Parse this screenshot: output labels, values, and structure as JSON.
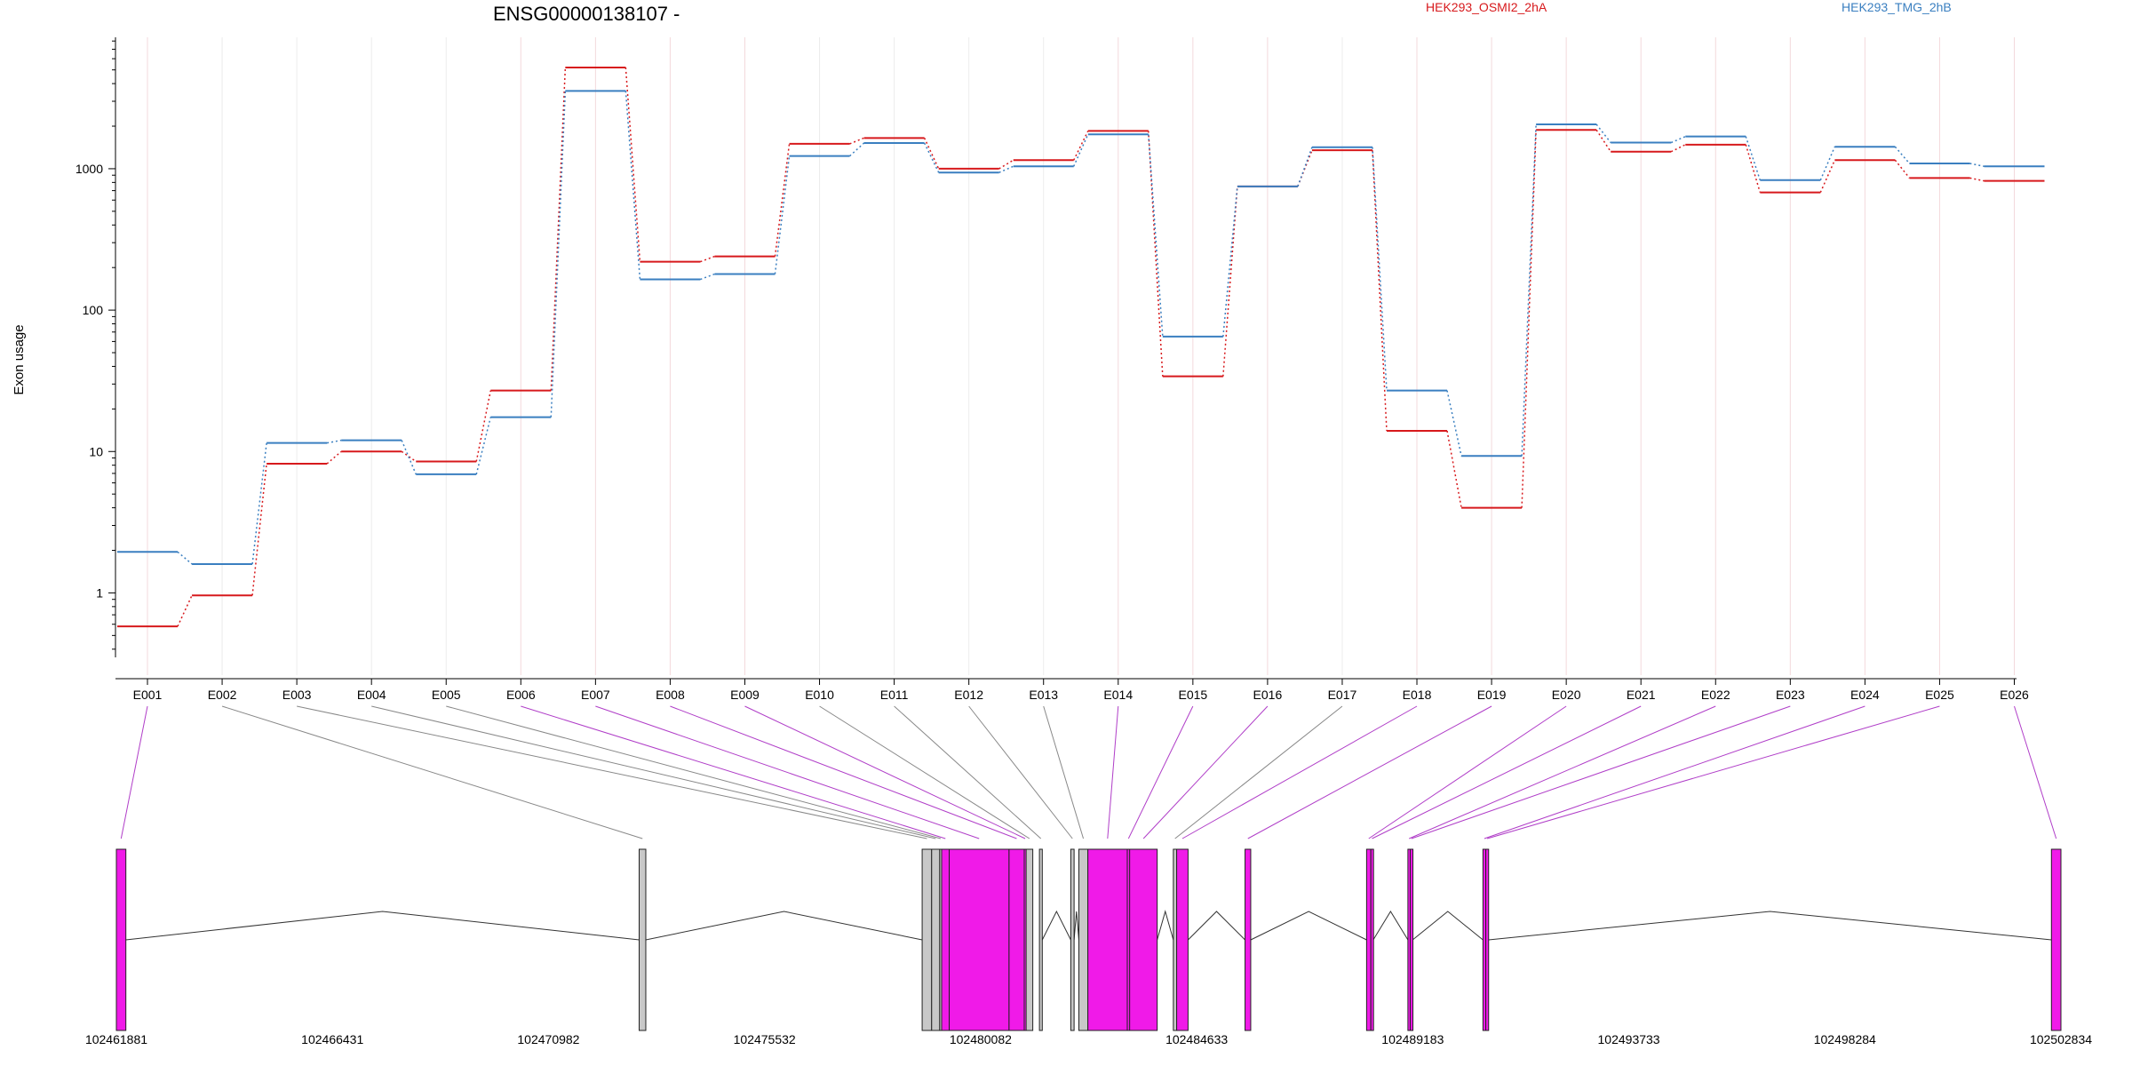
{
  "chart_data": {
    "type": "line",
    "title": "ENSG00000138107 -",
    "ylabel": "Exon usage",
    "yscale": "log",
    "ylim": [
      0.35,
      8500
    ],
    "yticks": [
      1,
      10,
      100,
      1000
    ],
    "ytick_labels": [
      "1",
      "10",
      "100",
      "1000"
    ],
    "categories": [
      "E001",
      "E002",
      "E003",
      "E004",
      "E005",
      "E006",
      "E007",
      "E008",
      "E009",
      "E010",
      "E011",
      "E012",
      "E013",
      "E014",
      "E015",
      "E016",
      "E017",
      "E018",
      "E019",
      "E020",
      "E021",
      "E022",
      "E023",
      "E024",
      "E025",
      "E026"
    ],
    "series": [
      {
        "name": "HEK293_OSMI2_2hA",
        "color": "#d7191c",
        "values": [
          0.58,
          0.96,
          8.2,
          10,
          8.5,
          27,
          5200,
          220,
          240,
          1500,
          1650,
          1000,
          1150,
          1850,
          34,
          750,
          1350,
          14,
          4,
          1880,
          1320,
          1480,
          680,
          1150,
          860,
          820
        ]
      },
      {
        "name": "HEK293_TMG_2hB",
        "color": "#3a7fc0",
        "values": [
          1.95,
          1.6,
          11.5,
          12,
          6.9,
          17.5,
          3550,
          165,
          180,
          1230,
          1520,
          940,
          1040,
          1750,
          65,
          750,
          1420,
          27,
          9.3,
          2060,
          1530,
          1690,
          830,
          1430,
          1090,
          1040
        ]
      }
    ],
    "grid": true,
    "legend_position": "top",
    "gene_model": {
      "start_coord": 102461881,
      "end_coord": 102502834,
      "coordinate_labels": [
        "102461881",
        "102466431",
        "102470982",
        "102475532",
        "102480082",
        "102484633",
        "102489183",
        "102493733",
        "102498284",
        "102502834"
      ],
      "exons": [
        {
          "id": "E001",
          "start": 102461881,
          "end": 102462081,
          "significant": true
        },
        {
          "id": "E002",
          "start": 102472891,
          "end": 102473031,
          "significant": false
        },
        {
          "id": "E003",
          "start": 102478851,
          "end": 102479051,
          "significant": false
        },
        {
          "id": "E004",
          "start": 102479051,
          "end": 102479221,
          "significant": false
        },
        {
          "id": "E005",
          "start": 102479221,
          "end": 102479261,
          "significant": false
        },
        {
          "id": "E006",
          "start": 102479261,
          "end": 102479421,
          "significant": true
        },
        {
          "id": "E007",
          "start": 102479421,
          "end": 102480681,
          "significant": true
        },
        {
          "id": "E008",
          "start": 102480681,
          "end": 102481001,
          "significant": true
        },
        {
          "id": "E009",
          "start": 102481001,
          "end": 102481041,
          "significant": true
        },
        {
          "id": "E010",
          "start": 102481041,
          "end": 102481181,
          "significant": false
        },
        {
          "id": "E011",
          "start": 102481321,
          "end": 102481381,
          "significant": false
        },
        {
          "id": "E012",
          "start": 102481981,
          "end": 102482051,
          "significant": false
        },
        {
          "id": "E013",
          "start": 102482151,
          "end": 102482341,
          "significant": false
        },
        {
          "id": "E014",
          "start": 102482341,
          "end": 102483171,
          "significant": true
        },
        {
          "id": "E015",
          "start": 102483171,
          "end": 102483221,
          "significant": true
        },
        {
          "id": "E016",
          "start": 102483221,
          "end": 102483801,
          "significant": true
        },
        {
          "id": "E017",
          "start": 102484141,
          "end": 102484211,
          "significant": false
        },
        {
          "id": "E018",
          "start": 102484211,
          "end": 102484451,
          "significant": true
        },
        {
          "id": "E019",
          "start": 102485651,
          "end": 102485771,
          "significant": true
        },
        {
          "id": "E020",
          "start": 102488211,
          "end": 102488301,
          "significant": true
        },
        {
          "id": "E021",
          "start": 102488301,
          "end": 102488351,
          "significant": true
        },
        {
          "id": "E022",
          "start": 102489081,
          "end": 102489131,
          "significant": true
        },
        {
          "id": "E023",
          "start": 102489131,
          "end": 102489181,
          "significant": true
        },
        {
          "id": "E024",
          "start": 102490661,
          "end": 102490721,
          "significant": true
        },
        {
          "id": "E025",
          "start": 102490721,
          "end": 102490781,
          "significant": true
        },
        {
          "id": "E026",
          "start": 102502634,
          "end": 102502834,
          "significant": true
        }
      ],
      "introns": [
        [
          0,
          1
        ],
        [
          1,
          2
        ],
        [
          10,
          11
        ],
        [
          11,
          12
        ],
        [
          15,
          16
        ],
        [
          17,
          18
        ],
        [
          18,
          19
        ],
        [
          20,
          21
        ],
        [
          22,
          23
        ],
        [
          24,
          25
        ]
      ]
    }
  }
}
